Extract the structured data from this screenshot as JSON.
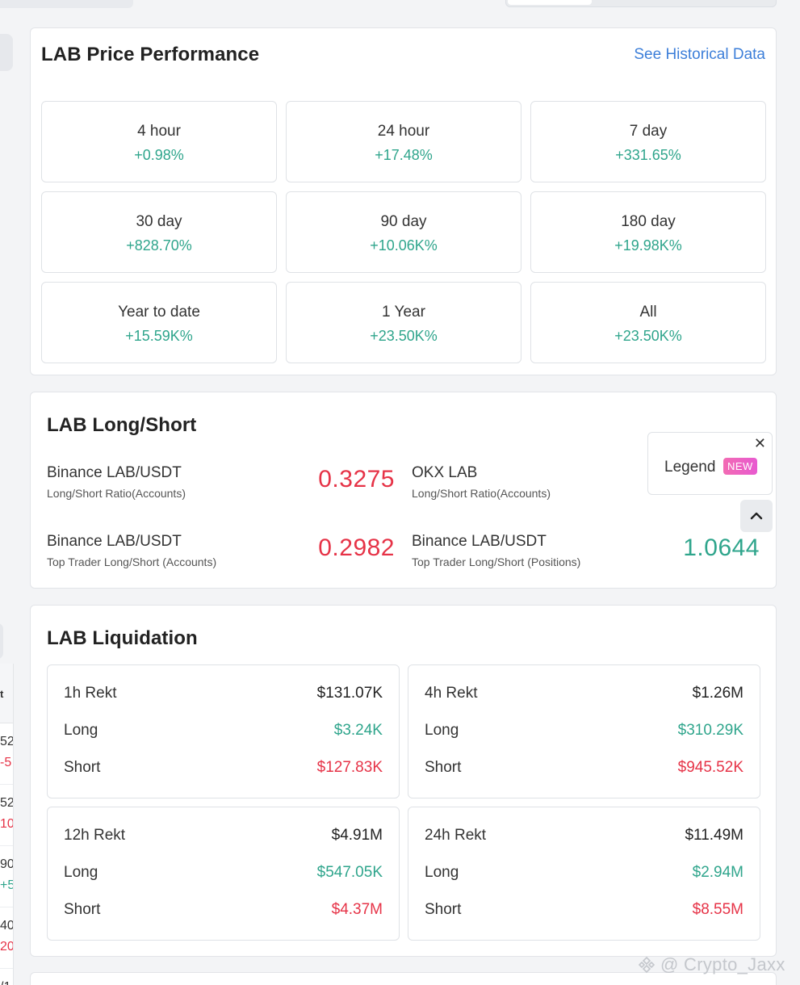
{
  "performance": {
    "title": "LAB Price Performance",
    "link": "See Historical Data",
    "cells": [
      {
        "label": "4 hour",
        "value": "+0.98%"
      },
      {
        "label": "24 hour",
        "value": "+17.48%"
      },
      {
        "label": "7 day",
        "value": "+331.65%"
      },
      {
        "label": "30 day",
        "value": "+828.70%"
      },
      {
        "label": "90 day",
        "value": "+10.06K%"
      },
      {
        "label": "180 day",
        "value": "+19.98K%"
      },
      {
        "label": "Year to date",
        "value": "+15.59K%"
      },
      {
        "label": "1 Year",
        "value": "+23.50K%"
      },
      {
        "label": "All",
        "value": "+23.50K%"
      }
    ]
  },
  "long_short": {
    "title": "LAB Long/Short",
    "items": [
      {
        "name": "Binance LAB/USDT",
        "sub": "Long/Short Ratio(Accounts)",
        "value": "0.3275"
      },
      {
        "name": "OKX LAB",
        "sub": "Long/Short Ratio(Accounts)",
        "value": ""
      },
      {
        "name": "Binance LAB/USDT",
        "sub": "Top Trader Long/Short (Accounts)",
        "value": "0.2982"
      },
      {
        "name": "Binance LAB/USDT",
        "sub": "Top Trader Long/Short (Positions)",
        "value": "1.0644"
      }
    ],
    "legend": {
      "label": "Legend",
      "badge": "NEW"
    }
  },
  "liquidation": {
    "title": "LAB Liquidation",
    "boxes": [
      {
        "period": "1h Rekt",
        "total": "$131.07K",
        "long_label": "Long",
        "long": "$3.24K",
        "short_label": "Short",
        "short": "$127.83K"
      },
      {
        "period": "4h Rekt",
        "total": "$1.26M",
        "long_label": "Long",
        "long": "$310.29K",
        "short_label": "Short",
        "short": "$945.52K"
      },
      {
        "period": "12h Rekt",
        "total": "$4.91M",
        "long_label": "Long",
        "long": "$547.05K",
        "short_label": "Short",
        "short": "$4.37M"
      },
      {
        "period": "24h Rekt",
        "total": "$11.49M",
        "long_label": "Long",
        "long": "$2.94M",
        "short_label": "Short",
        "short": "$8.55M"
      }
    ]
  },
  "left_table": {
    "header": "t",
    "rows": [
      {
        "a": "52",
        "b": "-5"
      },
      {
        "a": "52",
        "b": "10"
      },
      {
        "a": "90",
        "b": "+5"
      },
      {
        "a": "40",
        "b": "20"
      },
      {
        "a": "/1",
        "b": ""
      }
    ]
  },
  "watermark": "@ Crypto_Jaxx",
  "colors": {
    "green": "#2fa58c",
    "red": "#e63347",
    "link": "#3d7fd9"
  }
}
